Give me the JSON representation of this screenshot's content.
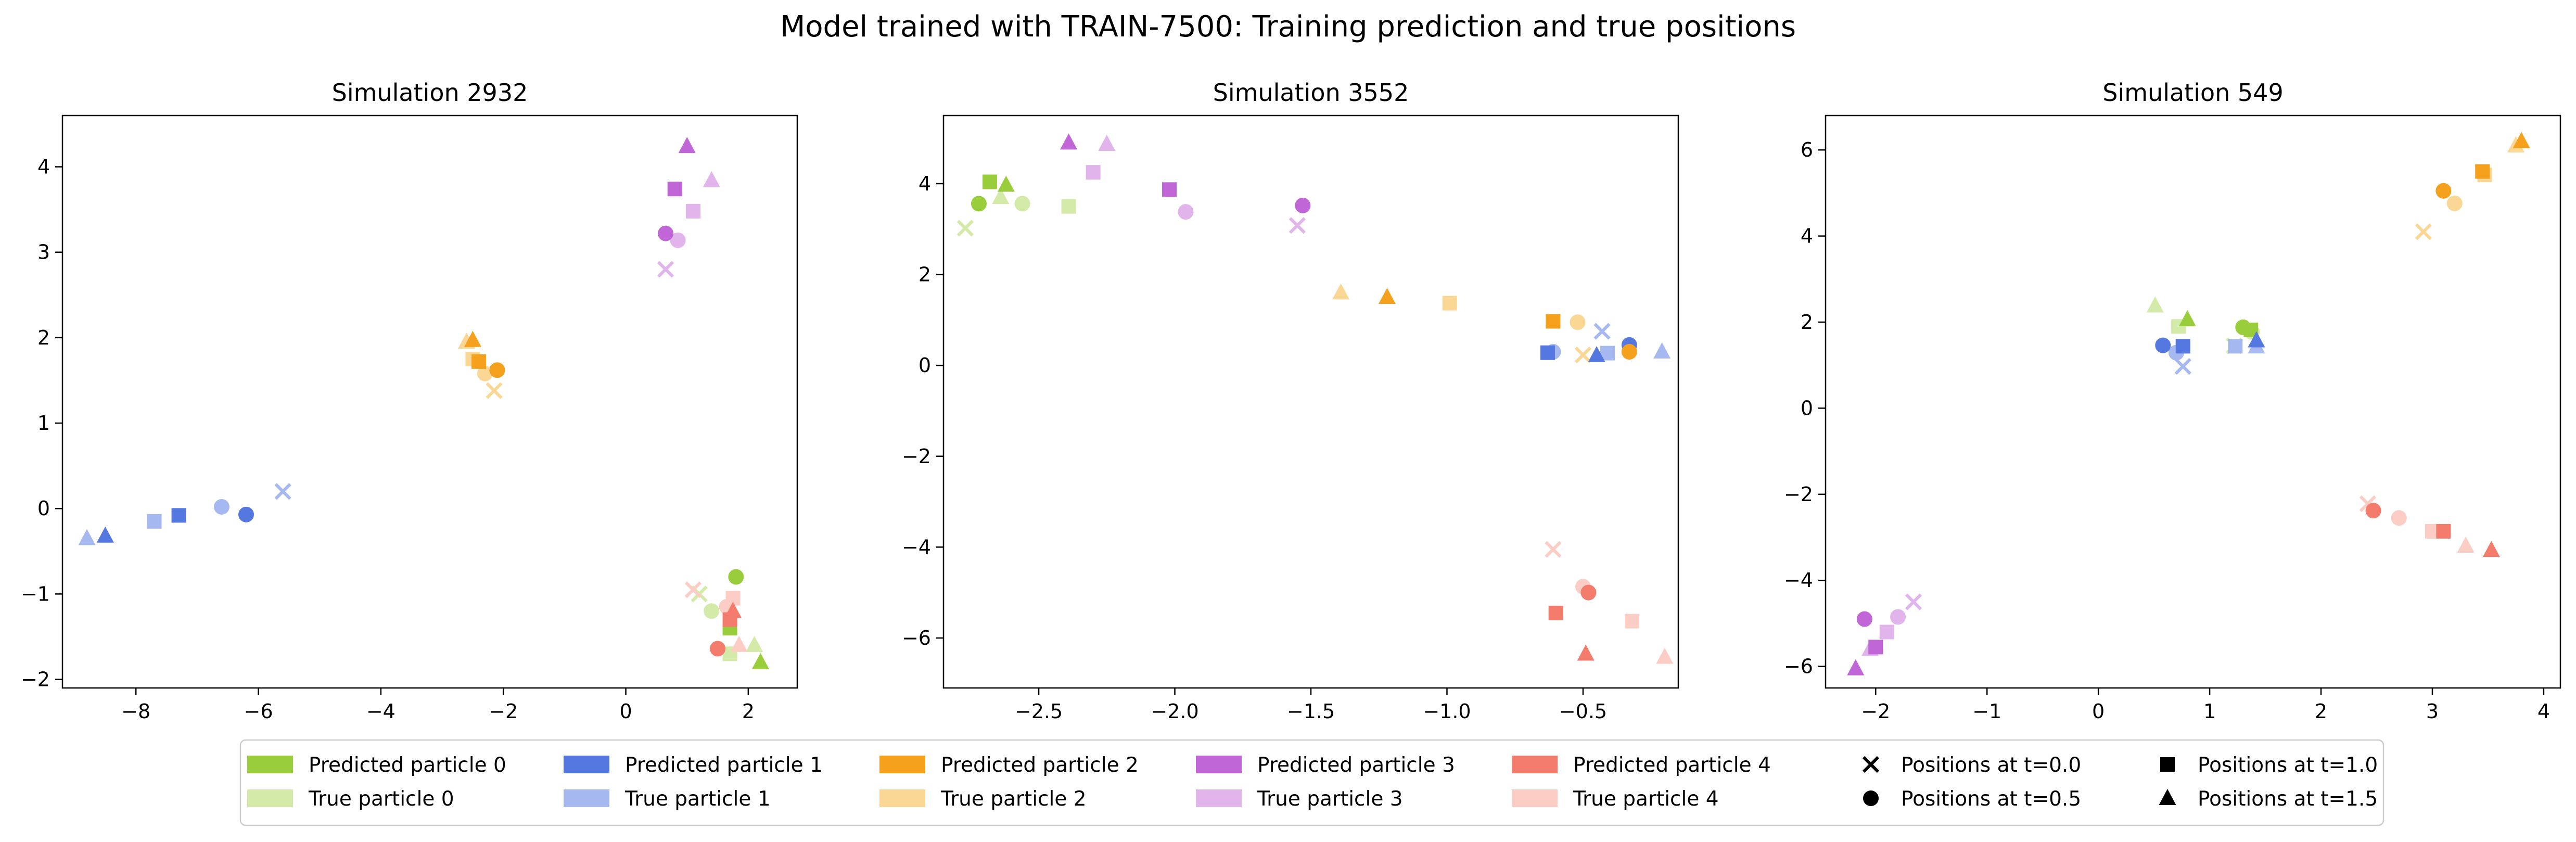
{
  "figure": {
    "title": "Model trained with TRAIN-7500: Training prediction and true positions"
  },
  "colors": {
    "pred": [
      "#9acd3c",
      "#5577e0",
      "#f5a11d",
      "#c066d6",
      "#f47c6c"
    ],
    "true": [
      "#d3eaa8",
      "#a5b8f0",
      "#fad795",
      "#e1b5eb",
      "#fbcdc4"
    ],
    "marker": "#000000"
  },
  "legend": {
    "placement": "bottom-center",
    "particles": [
      {
        "pred_label": "Predicted particle 0",
        "true_label": "True particle 0"
      },
      {
        "pred_label": "Predicted particle 1",
        "true_label": "True particle 1"
      },
      {
        "pred_label": "Predicted particle 2",
        "true_label": "True particle 2"
      },
      {
        "pred_label": "Predicted particle 3",
        "true_label": "True particle 3"
      },
      {
        "pred_label": "Predicted particle 4",
        "true_label": "True particle 4"
      }
    ],
    "markers": [
      {
        "label": "Positions at t=0.0",
        "icon": "x-marker-icon"
      },
      {
        "label": "Positions at t=0.5",
        "icon": "circle-marker-icon"
      },
      {
        "label": "Positions at t=1.0",
        "icon": "square-marker-icon"
      },
      {
        "label": "Positions at t=1.5",
        "icon": "triangle-marker-icon"
      }
    ]
  },
  "chart_data": [
    {
      "type": "scatter",
      "title": "Simulation 2932",
      "xlim": [
        -9.2,
        2.8
      ],
      "ylim": [
        -2.1,
        4.6
      ],
      "xticks": [
        -8,
        -6,
        -4,
        -2,
        0,
        2
      ],
      "yticks": [
        -2,
        -1,
        0,
        1,
        2,
        3,
        4
      ],
      "grid": false,
      "particles": [
        {
          "pred": [
            [
              null,
              null
            ],
            [
              1.8,
              -0.8
            ],
            [
              1.7,
              -1.4
            ],
            [
              2.2,
              -1.8
            ]
          ],
          "true": [
            [
              1.2,
              -1.0
            ],
            [
              1.4,
              -1.2
            ],
            [
              1.7,
              -1.7
            ],
            [
              2.1,
              -1.6
            ]
          ]
        },
        {
          "pred": [
            [
              null,
              null
            ],
            [
              -6.2,
              -0.07
            ],
            [
              -7.3,
              -0.08
            ],
            [
              -8.5,
              -0.32
            ]
          ],
          "true": [
            [
              -5.6,
              0.2
            ],
            [
              -6.6,
              0.02
            ],
            [
              -7.7,
              -0.15
            ],
            [
              -8.8,
              -0.35
            ]
          ]
        },
        {
          "pred": [
            [
              null,
              null
            ],
            [
              -2.1,
              1.62
            ],
            [
              -2.4,
              1.72
            ],
            [
              -2.5,
              1.97
            ]
          ],
          "true": [
            [
              -2.15,
              1.38
            ],
            [
              -2.3,
              1.58
            ],
            [
              -2.5,
              1.75
            ],
            [
              -2.6,
              1.95
            ]
          ]
        },
        {
          "pred": [
            [
              null,
              null
            ],
            [
              0.65,
              3.22
            ],
            [
              0.8,
              3.74
            ],
            [
              1.0,
              4.24
            ]
          ],
          "true": [
            [
              0.65,
              2.8
            ],
            [
              0.85,
              3.14
            ],
            [
              1.1,
              3.48
            ],
            [
              1.4,
              3.84
            ]
          ]
        },
        {
          "pred": [
            [
              null,
              null
            ],
            [
              1.5,
              -1.64
            ],
            [
              1.7,
              -1.3
            ],
            [
              1.75,
              -1.2
            ]
          ],
          "true": [
            [
              1.1,
              -0.95
            ],
            [
              1.65,
              -1.15
            ],
            [
              1.75,
              -1.05
            ],
            [
              1.85,
              -1.6
            ]
          ]
        }
      ]
    },
    {
      "type": "scatter",
      "title": "Simulation 3552",
      "xlim": [
        -2.85,
        -0.15
      ],
      "ylim": [
        -7.1,
        5.5
      ],
      "xticks": [
        -2.5,
        -2.0,
        -1.5,
        -1.0,
        -0.5
      ],
      "yticks": [
        -6,
        -4,
        -2,
        0,
        2,
        4
      ],
      "grid": false,
      "particles": [
        {
          "pred": [
            [
              null,
              null
            ],
            [
              -2.72,
              3.56
            ],
            [
              -2.68,
              4.04
            ],
            [
              -2.62,
              3.97
            ]
          ],
          "true": [
            [
              -2.77,
              3.02
            ],
            [
              -2.56,
              3.56
            ],
            [
              -2.39,
              3.5
            ],
            [
              -2.64,
              3.7
            ]
          ]
        },
        {
          "pred": [
            [
              null,
              null
            ],
            [
              -0.33,
              0.45
            ],
            [
              -0.63,
              0.28
            ],
            [
              -0.45,
              0.22
            ]
          ],
          "true": [
            [
              -0.43,
              0.75
            ],
            [
              -0.61,
              0.3
            ],
            [
              -0.41,
              0.27
            ],
            [
              -0.21,
              0.3
            ]
          ]
        },
        {
          "pred": [
            [
              null,
              null
            ],
            [
              -0.33,
              0.3
            ],
            [
              -0.61,
              0.97
            ],
            [
              -1.22,
              1.5
            ]
          ],
          "true": [
            [
              -0.5,
              0.23
            ],
            [
              -0.52,
              0.95
            ],
            [
              -0.99,
              1.37
            ],
            [
              -1.39,
              1.6
            ]
          ]
        },
        {
          "pred": [
            [
              null,
              null
            ],
            [
              -1.53,
              3.52
            ],
            [
              -2.02,
              3.87
            ],
            [
              -2.39,
              4.9
            ]
          ],
          "true": [
            [
              -1.55,
              3.08
            ],
            [
              -1.96,
              3.38
            ],
            [
              -2.3,
              4.25
            ],
            [
              -2.25,
              4.87
            ]
          ]
        },
        {
          "pred": [
            [
              null,
              null
            ],
            [
              -0.48,
              -5.0
            ],
            [
              -0.6,
              -5.45
            ],
            [
              -0.49,
              -6.35
            ]
          ],
          "true": [
            [
              -0.61,
              -4.05
            ],
            [
              -0.5,
              -4.87
            ],
            [
              -0.32,
              -5.63
            ],
            [
              -0.2,
              -6.42
            ]
          ]
        }
      ]
    },
    {
      "type": "scatter",
      "title": "Simulation 549",
      "xlim": [
        -2.45,
        4.15
      ],
      "ylim": [
        -6.5,
        6.8
      ],
      "xticks": [
        -2,
        -1,
        0,
        1,
        2,
        3,
        4
      ],
      "yticks": [
        -6,
        -4,
        -2,
        0,
        2,
        4,
        6
      ],
      "grid": false,
      "particles": [
        {
          "pred": [
            [
              null,
              null
            ],
            [
              1.3,
              1.88
            ],
            [
              1.37,
              1.82
            ],
            [
              0.8,
              2.06
            ]
          ],
          "true": [
            [
              1.22,
              1.45
            ],
            [
              1.38,
              1.77
            ],
            [
              0.72,
              1.9
            ],
            [
              0.51,
              2.38
            ]
          ]
        },
        {
          "pred": [
            [
              null,
              null
            ],
            [
              0.58,
              1.46
            ],
            [
              0.76,
              1.44
            ],
            [
              1.42,
              1.57
            ]
          ],
          "true": [
            [
              0.76,
              0.97
            ],
            [
              0.7,
              1.29
            ],
            [
              1.23,
              1.44
            ],
            [
              1.42,
              1.43
            ]
          ]
        },
        {
          "pred": [
            [
              null,
              null
            ],
            [
              3.1,
              5.05
            ],
            [
              3.45,
              5.5
            ],
            [
              3.8,
              6.2
            ]
          ],
          "true": [
            [
              2.92,
              4.1
            ],
            [
              3.2,
              4.76
            ],
            [
              3.47,
              5.42
            ],
            [
              3.75,
              6.1
            ]
          ]
        },
        {
          "pred": [
            [
              null,
              null
            ],
            [
              -2.1,
              -4.9
            ],
            [
              -2.0,
              -5.55
            ],
            [
              -2.18,
              -6.05
            ]
          ],
          "true": [
            [
              -1.66,
              -4.5
            ],
            [
              -1.8,
              -4.85
            ],
            [
              -1.9,
              -5.2
            ],
            [
              -2.05,
              -5.6
            ]
          ]
        },
        {
          "pred": [
            [
              null,
              null
            ],
            [
              2.47,
              -2.38
            ],
            [
              3.1,
              -2.86
            ],
            [
              3.53,
              -3.3
            ]
          ],
          "true": [
            [
              2.42,
              -2.22
            ],
            [
              2.7,
              -2.55
            ],
            [
              3.0,
              -2.86
            ],
            [
              3.3,
              -3.2
            ]
          ]
        }
      ]
    }
  ]
}
